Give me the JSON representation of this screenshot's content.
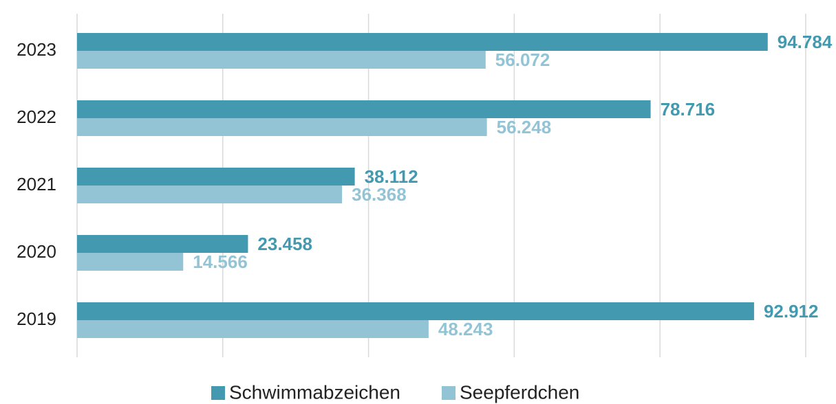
{
  "chart_data": {
    "type": "bar",
    "orientation": "horizontal",
    "categories": [
      "2023",
      "2022",
      "2021",
      "2020",
      "2019"
    ],
    "series": [
      {
        "name": "Schwimmabzeichen",
        "color": "#4399b0",
        "values": [
          94784,
          78716,
          38112,
          23458,
          92912
        ],
        "value_labels": [
          "94.784",
          "78.716",
          "38.112",
          "23.458",
          "92.912"
        ]
      },
      {
        "name": "Seepferdchen",
        "color": "#93c4d6",
        "values": [
          56072,
          56248,
          36368,
          14566,
          48243
        ],
        "value_labels": [
          "56.072",
          "56.248",
          "36.368",
          "14.566",
          "48.243"
        ]
      }
    ],
    "xlim": [
      0,
      100000
    ],
    "xticks": [
      0,
      20000,
      40000,
      60000,
      80000,
      100000
    ],
    "grid": true,
    "legend": "bottom"
  }
}
